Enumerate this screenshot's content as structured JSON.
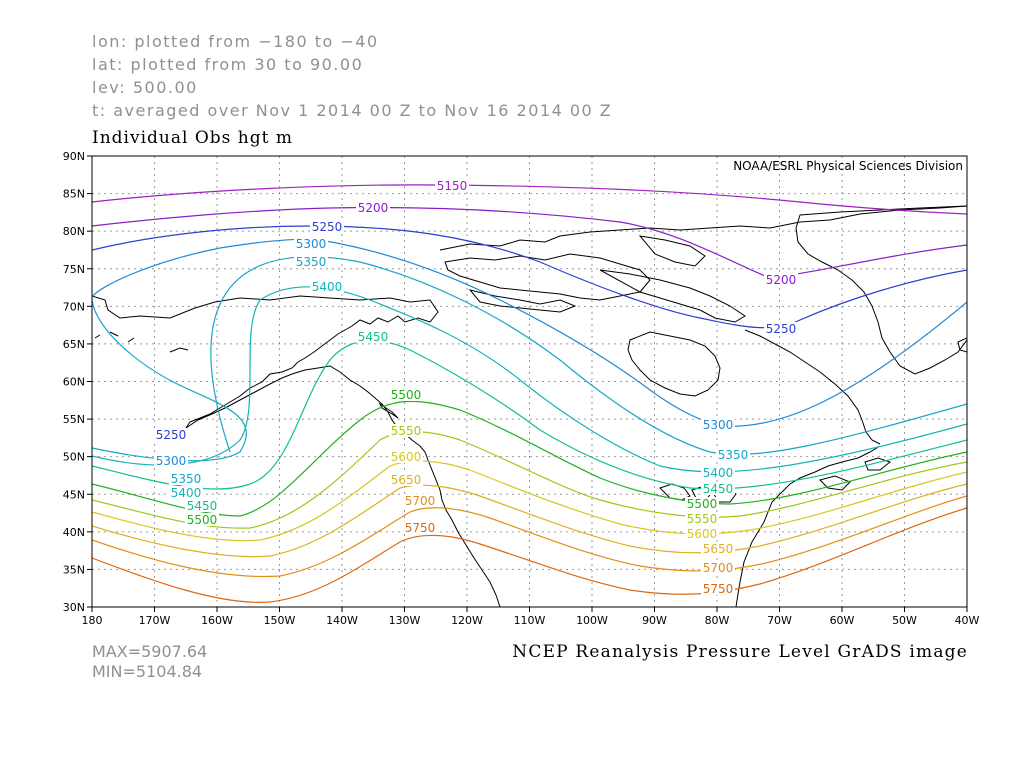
{
  "header": {
    "lon_line": "lon: plotted from −180 to −40",
    "lat_line": "lat: plotted from 30 to 90.00",
    "lev_line": "lev: 500.00",
    "time_line": "t: averaged over Nov 1 2014 00 Z to Nov 16 2014 00 Z"
  },
  "plot_title": "Individual Obs hgt m",
  "credit": "NOAA/ESRL Physical Sciences Division",
  "stats": {
    "max": "MAX=5907.64",
    "min": "MIN=5104.84"
  },
  "footer": "NCEP Reanalysis Pressure Level GrADS image",
  "axes": {
    "lat_labels": [
      "90N",
      "85N",
      "80N",
      "75N",
      "70N",
      "65N",
      "60N",
      "55N",
      "50N",
      "45N",
      "40N",
      "35N",
      "30N"
    ],
    "lon_labels": [
      "180",
      "170W",
      "160W",
      "150W",
      "140W",
      "130W",
      "120W",
      "110W",
      "100W",
      "90W",
      "80W",
      "70W",
      "60W",
      "50W",
      "40W"
    ]
  },
  "contours": [
    {
      "level": "5150",
      "color": "#a020c0"
    },
    {
      "level": "5200",
      "color": "#8a1ec8"
    },
    {
      "level": "5250",
      "color": "#2b3fd0"
    },
    {
      "level": "5300",
      "color": "#1e8ad8"
    },
    {
      "level": "5350",
      "color": "#18a6c8"
    },
    {
      "level": "5400",
      "color": "#10b4b4"
    },
    {
      "level": "5450",
      "color": "#10c090"
    },
    {
      "level": "5500",
      "color": "#20b020"
    },
    {
      "level": "5550",
      "color": "#a0c818"
    },
    {
      "level": "5600",
      "color": "#d8c820"
    },
    {
      "level": "5650",
      "color": "#e0b020"
    },
    {
      "level": "5700",
      "color": "#e09018"
    },
    {
      "level": "5750",
      "color": "#e06810"
    }
  ]
}
